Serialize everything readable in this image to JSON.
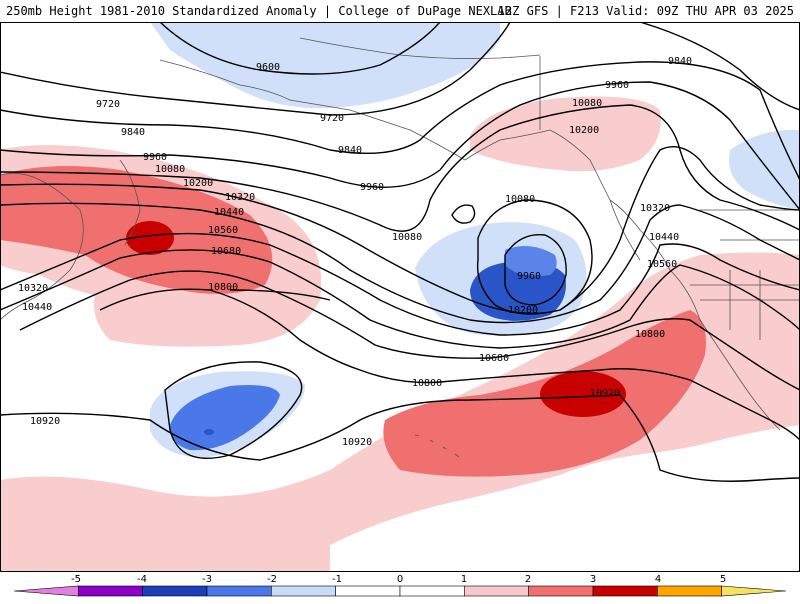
{
  "header": {
    "left_title": "250mb Height 1981-2010 Standardized Anomaly | College of DuPage NEXLAB",
    "right_title": "12Z GFS | F213 Valid: 09Z THU APR 03 2025"
  },
  "contour_labels": [
    "9600",
    "9720",
    "9720",
    "9840",
    "9840",
    "9840",
    "9960",
    "9960",
    "9960",
    "9960",
    "10080",
    "10080",
    "10080",
    "10080",
    "10200",
    "10200",
    "10200",
    "10320",
    "10320",
    "10320",
    "10440",
    "10440",
    "10440",
    "10560",
    "10560",
    "10680",
    "10680",
    "10800",
    "10800",
    "10800",
    "10920",
    "10920",
    "10920"
  ],
  "colorbar": {
    "ticks": [
      "-5",
      "-4",
      "-3",
      "-2",
      "-1",
      "0",
      "1",
      "2",
      "3",
      "4",
      "5"
    ],
    "colors": [
      "#e080e0",
      "#8a00c8",
      "#1a3fb8",
      "#4a78e8",
      "#c8dcf8",
      "#ffffff",
      "#ffffff",
      "#f8c8c8",
      "#f07070",
      "#c80000",
      "#ffa500",
      "#f8e060"
    ]
  },
  "anomaly_colors": {
    "neg1": "#cfe0f8",
    "neg2": "#5a84e8",
    "neg3": "#2a55c8",
    "pos1": "#f9cdcd",
    "pos2": "#f07070",
    "pos3": "#c80000"
  }
}
